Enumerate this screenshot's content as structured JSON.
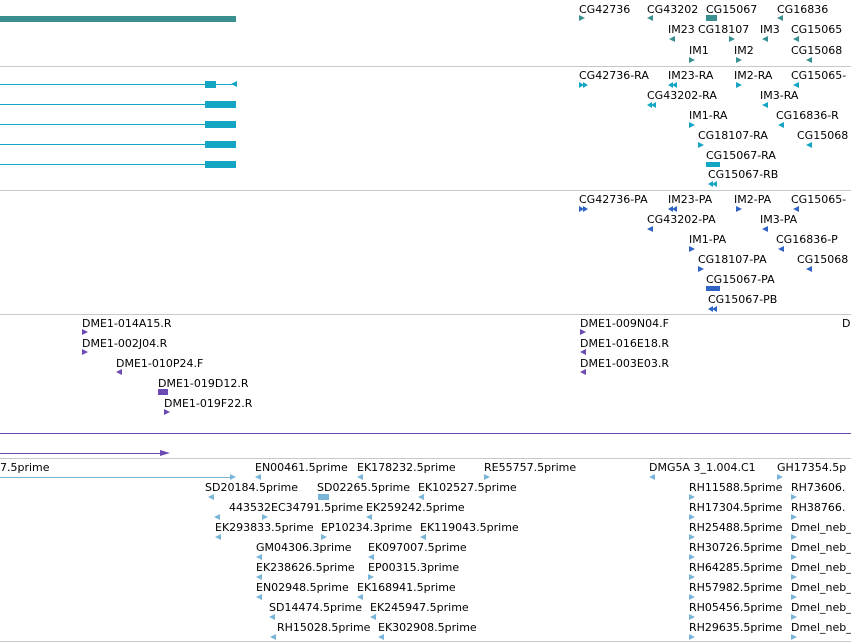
{
  "colors": {
    "gene": "#3a8f8f",
    "transcript": "#14a5c4",
    "protein": "#2f64c4",
    "clone": "#6c4ab3",
    "est": "#79b5d8",
    "divider": "#c8c8c8"
  },
  "tracks": {
    "genes": {
      "labels": [
        "CG42736",
        "CG43202",
        "CG15067",
        "CG16836",
        "IM23",
        "CG18107",
        "IM3",
        "CG15065",
        "IM1",
        "IM2",
        "CG15068"
      ]
    },
    "transcripts": {
      "labels": [
        "CG42736-RA",
        "IM23-RA",
        "IM2-RA",
        "CG15065-",
        "CG43202-RA",
        "IM3-RA",
        "IM1-RA",
        "CG16836-R",
        "CG18107-RA",
        "CG15068",
        "CG15067-RA",
        "CG15067-RB"
      ]
    },
    "proteins": {
      "labels": [
        "CG42736-PA",
        "IM23-PA",
        "IM2-PA",
        "CG15065-",
        "CG43202-PA",
        "IM3-PA",
        "IM1-PA",
        "CG16836-P",
        "CG18107-PA",
        "CG15068",
        "CG15067-PA",
        "CG15067-PB"
      ]
    },
    "clones": {
      "labels": [
        "DME1-014A15.R",
        "DME1-002J04.R",
        "DME1-010P24.F",
        "DME1-019D12.R",
        "DME1-019F22.R",
        "DME1-009N04.F",
        "DME1-016E18.R",
        "DME1-003E03.R",
        "D"
      ]
    },
    "ests": {
      "labels": [
        "7.5prime",
        "EN00461.5prime",
        "EK178232.5prime",
        "RE55757.5prime",
        "DMG5A 3_1.004.C1",
        "GH17354.5p",
        "SD20184.5prime",
        "SD02265.5prime",
        "EK102527.5prime",
        "RH11588.5prime",
        "RH73606.",
        "443532EC34791.5prime",
        "EK259242.5prime",
        "RH17304.5prime",
        "RH38766.",
        "EK293833.5prime",
        "EP10234.3prime",
        "EK119043.5prime",
        "RH25488.5prime",
        "Dmel_neb_",
        "GM04306.3prime",
        "EK097007.5prime",
        "RH30726.5prime",
        "Dmel_neb_",
        "EK238626.5prime",
        "EP00315.3prime",
        "RH64285.5prime",
        "Dmel_neb_",
        "EN02948.5prime",
        "EK168941.5prime",
        "RH57982.5prime",
        "Dmel_neb_",
        "SD14474.5prime",
        "EK245947.5prime",
        "RH05456.5prime",
        "Dmel_neb_",
        "RH15028.5prime",
        "EK302908.5prime",
        "RH29635.5prime",
        "Dmel_neb_"
      ]
    }
  }
}
